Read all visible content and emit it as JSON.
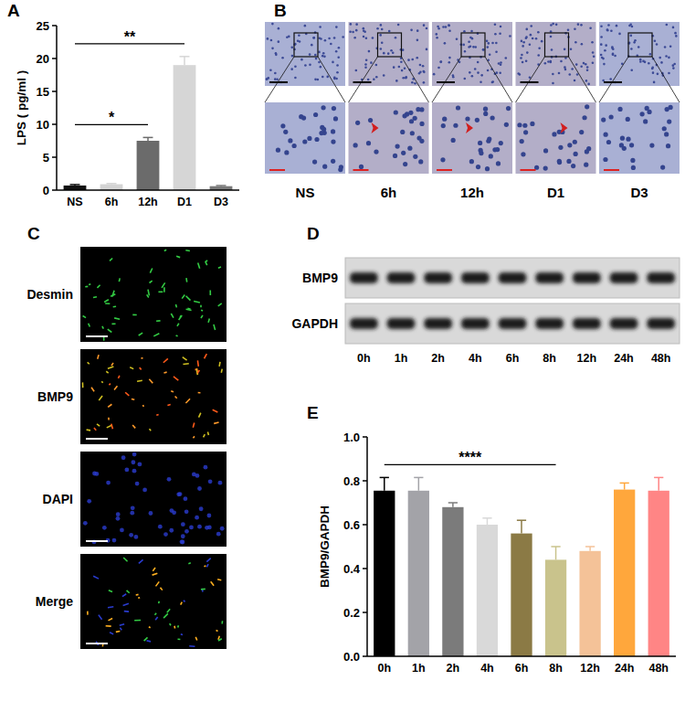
{
  "chart_data": [
    {
      "panel_label": "A",
      "type": "bar",
      "y_label": "LPS ( pg/ml )",
      "categories": [
        "NS",
        "6h",
        "12h",
        "D1",
        "D3"
      ],
      "values": [
        0.7,
        0.9,
        7.5,
        19,
        0.6
      ],
      "errors": [
        0.15,
        0.1,
        0.5,
        1.3,
        0.1
      ],
      "colors": [
        "#111111",
        "#d4d4d4",
        "#6b6b6b",
        "#d6d6d6",
        "#7a7a7a"
      ],
      "ylim": [
        0,
        25
      ],
      "yticks": [
        0,
        5,
        10,
        15,
        20,
        25
      ],
      "grid": false,
      "annotations": [
        {
          "text": "*",
          "start": "NS",
          "end": "12h"
        },
        {
          "text": "**",
          "start": "NS",
          "end": "D1"
        }
      ]
    },
    {
      "panel_label": "E",
      "type": "bar",
      "y_label": "BMP9/GAPDH",
      "categories": [
        "0h",
        "1h",
        "2h",
        "4h",
        "6h",
        "8h",
        "12h",
        "24h",
        "48h"
      ],
      "values": [
        0.755,
        0.755,
        0.68,
        0.6,
        0.56,
        0.44,
        0.48,
        0.76,
        0.755
      ],
      "errors": [
        0.06,
        0.06,
        0.02,
        0.03,
        0.06,
        0.06,
        0.02,
        0.03,
        0.06
      ],
      "colors": [
        "#000000",
        "#a3a3a8",
        "#7b7b7b",
        "#d9d9d9",
        "#8b7a45",
        "#c9c38c",
        "#f4c298",
        "#ffa73c",
        "#ff8585"
      ],
      "ylim": [
        0,
        1
      ],
      "yticks": [
        {
          "value": 0,
          "label": "0.0"
        },
        {
          "value": 0.2,
          "label": "0.2"
        },
        {
          "value": 0.4,
          "label": "0.4"
        },
        {
          "value": 0.6,
          "label": "0.6"
        },
        {
          "value": 0.8,
          "label": "0.8"
        },
        {
          "value": 1,
          "label": "1.0"
        }
      ],
      "grid": false,
      "annotations": [
        {
          "text": "****",
          "start": "0h",
          "end": "8h"
        }
      ]
    }
  ],
  "micrographs": {
    "panel_label": "B",
    "labels": [
      "NS",
      "6h",
      "12h",
      "D1",
      "D3"
    ]
  },
  "immunofluorescence": {
    "panel_label": "C",
    "labels": [
      "Desmin",
      "BMP9",
      "DAPI",
      "Merge"
    ]
  },
  "western_blot": {
    "panel_label": "D",
    "proteins": [
      "BMP9",
      "GAPDH"
    ],
    "lanes": [
      "0h",
      "1h",
      "2h",
      "4h",
      "6h",
      "8h",
      "12h",
      "24h",
      "48h"
    ]
  }
}
